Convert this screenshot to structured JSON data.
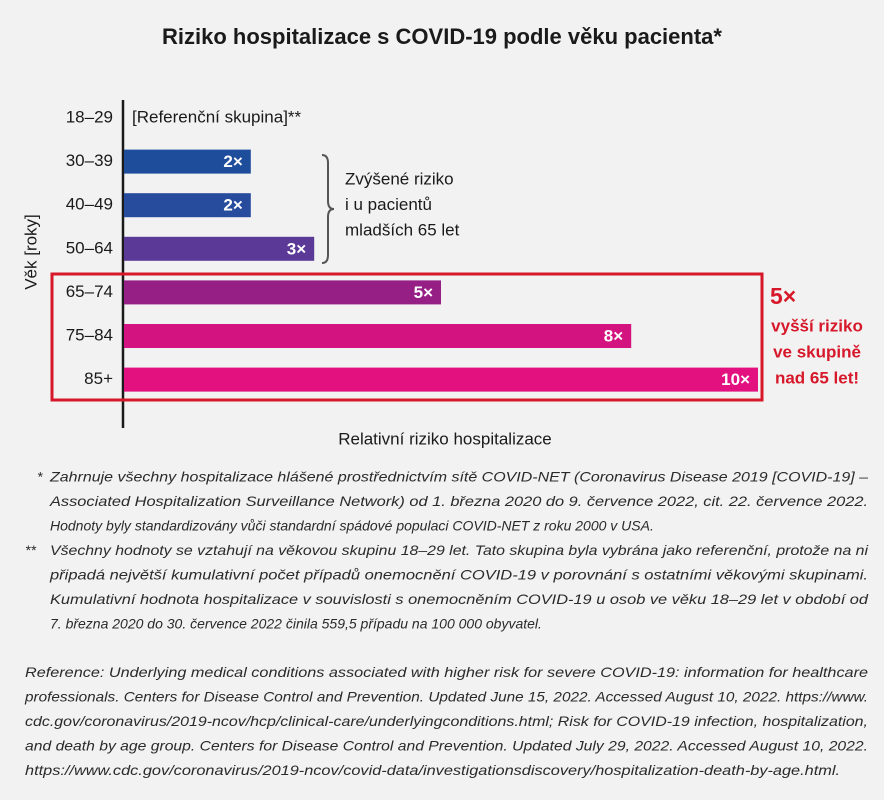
{
  "chart_data": {
    "type": "bar",
    "orientation": "horizontal",
    "title": "Riziko hospitalizace s COVID-19 podle věku pacienta*",
    "categories": [
      "18–29",
      "30–39",
      "40–49",
      "50–64",
      "65–74",
      "75–84",
      "85+"
    ],
    "values": [
      null,
      2,
      2,
      3,
      5,
      8,
      10
    ],
    "value_labels": [
      null,
      "2×",
      "2×",
      "3×",
      "5×",
      "8×",
      "10×"
    ],
    "colors": [
      null,
      "#1d4d9b",
      "#274b9d",
      "#5b3a97",
      "#961f86",
      "#d3137f",
      "#e3117f"
    ],
    "xlim": [
      0,
      10
    ],
    "ylabel": "Věk [roky]",
    "xlabel": "Relativní riziko hospitalizace",
    "reference_label": "[Referenční skupina]**",
    "bracket_note": [
      "Zvýšené riziko",
      "i u pacientů",
      "mladších 65 let"
    ],
    "highlight_note": [
      "5×",
      "vyšší riziko",
      "ve skupině",
      "nad 65 let!"
    ],
    "footnotes": [
      {
        "marker": "*",
        "lines": [
          "Zahrnuje všechny hospitalizace hlášené prostřednictvím sítě COVID-NET (Coronavirus Disease 2019 [COVID-19] –",
          "Associated Hospitalization Surveillance Network) od 1. března 2020 do 9. července 2022, cit. 22. července 2022.",
          "Hodnoty byly standardizovány vůči standardní spádové populaci COVID-NET z roku 2000 v USA."
        ]
      },
      {
        "marker": "**",
        "lines": [
          "Všechny hodnoty se vztahují na věkovou skupinu 18–29 let. Tato skupina byla vybrána jako referenční, protože na ni",
          "připadá největší kumulativní počet případů onemocnění COVID-19 v porovnání s ostatními věkovými skupinami.",
          "Kumulativní hodnota hospitalizace v souvislosti s onemocněním COVID-19 u osob ve věku 18–29 let v období od",
          "7. března 2020 do 30. července 2022 činila 559,5 případu na 100 000 obyvatel."
        ]
      }
    ],
    "reference": [
      "Reference: Underlying medical conditions associated with higher risk for severe COVID-19: information for healthcare",
      "professionals. Centers for Disease Control and Prevention. Updated June 15, 2022. Accessed August 10, 2022. https://www.",
      "cdc.gov/coronavirus/2019-ncov/hcp/clinical-care/underlyingconditions.html; Risk for COVID-19 infection, hospitalization,",
      "and death by age group. Centers for Disease Control and Prevention. Updated July 29, 2022. Accessed August 10, 2022.",
      "https://www.cdc.gov/coronavirus/2019-ncov/covid-data/investigationsdiscovery/hospitalization-death-by-age.html."
    ]
  }
}
